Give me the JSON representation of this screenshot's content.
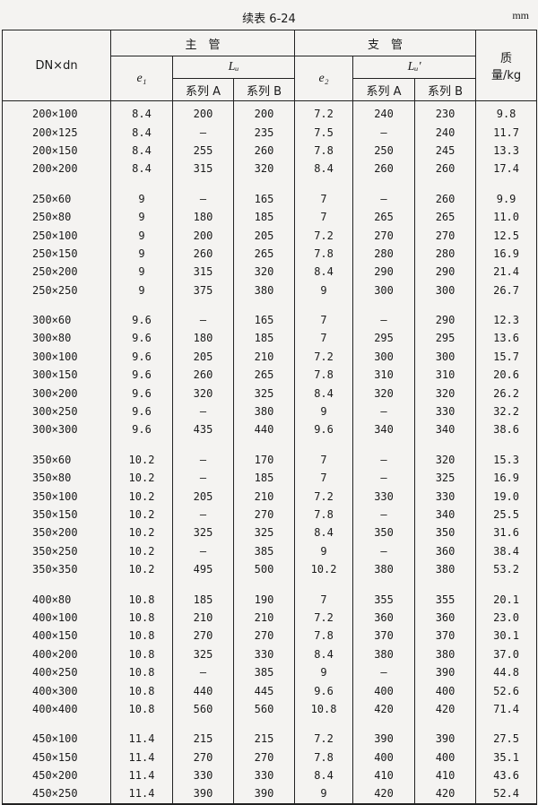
{
  "caption": "续表 6-24",
  "unit": "mm",
  "headers": {
    "dn": "DN×dn",
    "main_pipe": "主　管",
    "branch_pipe": "支　管",
    "e1": "e₁",
    "lu": "Lᵤ",
    "e2": "e₂",
    "lu_prime": "Lᵤ'",
    "series_a": "系列 A",
    "series_b": "系列 B",
    "mass": "质量/kg"
  },
  "groups": [
    [
      [
        "200×100",
        "8.4",
        "200",
        "200",
        "7.2",
        "240",
        "230",
        "9.8"
      ],
      [
        "200×125",
        "8.4",
        "—",
        "235",
        "7.5",
        "—",
        "240",
        "11.7"
      ],
      [
        "200×150",
        "8.4",
        "255",
        "260",
        "7.8",
        "250",
        "245",
        "13.3"
      ],
      [
        "200×200",
        "8.4",
        "315",
        "320",
        "8.4",
        "260",
        "260",
        "17.4"
      ]
    ],
    [
      [
        "250×60",
        "9",
        "—",
        "165",
        "7",
        "—",
        "260",
        "9.9"
      ],
      [
        "250×80",
        "9",
        "180",
        "185",
        "7",
        "265",
        "265",
        "11.0"
      ],
      [
        "250×100",
        "9",
        "200",
        "205",
        "7.2",
        "270",
        "270",
        "12.5"
      ],
      [
        "250×150",
        "9",
        "260",
        "265",
        "7.8",
        "280",
        "280",
        "16.9"
      ],
      [
        "250×200",
        "9",
        "315",
        "320",
        "8.4",
        "290",
        "290",
        "21.4"
      ],
      [
        "250×250",
        "9",
        "375",
        "380",
        "9",
        "300",
        "300",
        "26.7"
      ]
    ],
    [
      [
        "300×60",
        "9.6",
        "—",
        "165",
        "7",
        "—",
        "290",
        "12.3"
      ],
      [
        "300×80",
        "9.6",
        "180",
        "185",
        "7",
        "295",
        "295",
        "13.6"
      ],
      [
        "300×100",
        "9.6",
        "205",
        "210",
        "7.2",
        "300",
        "300",
        "15.7"
      ],
      [
        "300×150",
        "9.6",
        "260",
        "265",
        "7.8",
        "310",
        "310",
        "20.6"
      ],
      [
        "300×200",
        "9.6",
        "320",
        "325",
        "8.4",
        "320",
        "320",
        "26.2"
      ],
      [
        "300×250",
        "9.6",
        "—",
        "380",
        "9",
        "—",
        "330",
        "32.2"
      ],
      [
        "300×300",
        "9.6",
        "435",
        "440",
        "9.6",
        "340",
        "340",
        "38.6"
      ]
    ],
    [
      [
        "350×60",
        "10.2",
        "—",
        "170",
        "7",
        "—",
        "320",
        "15.3"
      ],
      [
        "350×80",
        "10.2",
        "—",
        "185",
        "7",
        "—",
        "325",
        "16.9"
      ],
      [
        "350×100",
        "10.2",
        "205",
        "210",
        "7.2",
        "330",
        "330",
        "19.0"
      ],
      [
        "350×150",
        "10.2",
        "—",
        "270",
        "7.8",
        "—",
        "340",
        "25.5"
      ],
      [
        "350×200",
        "10.2",
        "325",
        "325",
        "8.4",
        "350",
        "350",
        "31.6"
      ],
      [
        "350×250",
        "10.2",
        "—",
        "385",
        "9",
        "—",
        "360",
        "38.4"
      ],
      [
        "350×350",
        "10.2",
        "495",
        "500",
        "10.2",
        "380",
        "380",
        "53.2"
      ]
    ],
    [
      [
        "400×80",
        "10.8",
        "185",
        "190",
        "7",
        "355",
        "355",
        "20.1"
      ],
      [
        "400×100",
        "10.8",
        "210",
        "210",
        "7.2",
        "360",
        "360",
        "23.0"
      ],
      [
        "400×150",
        "10.8",
        "270",
        "270",
        "7.8",
        "370",
        "370",
        "30.1"
      ],
      [
        "400×200",
        "10.8",
        "325",
        "330",
        "8.4",
        "380",
        "380",
        "37.0"
      ],
      [
        "400×250",
        "10.8",
        "—",
        "385",
        "9",
        "—",
        "390",
        "44.8"
      ],
      [
        "400×300",
        "10.8",
        "440",
        "445",
        "9.6",
        "400",
        "400",
        "52.6"
      ],
      [
        "400×400",
        "10.8",
        "560",
        "560",
        "10.8",
        "420",
        "420",
        "71.4"
      ]
    ],
    [
      [
        "450×100",
        "11.4",
        "215",
        "215",
        "7.2",
        "390",
        "390",
        "27.5"
      ],
      [
        "450×150",
        "11.4",
        "270",
        "270",
        "7.8",
        "400",
        "400",
        "35.1"
      ],
      [
        "450×200",
        "11.4",
        "330",
        "330",
        "8.4",
        "410",
        "410",
        "43.6"
      ],
      [
        "450×250",
        "11.4",
        "390",
        "390",
        "9",
        "420",
        "420",
        "52.4"
      ]
    ]
  ]
}
